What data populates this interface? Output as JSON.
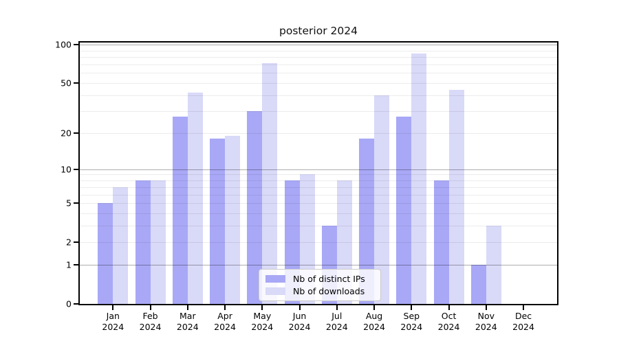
{
  "title": "posterior 2024",
  "colors": {
    "distinct_ips_bar": "#a8a8f6",
    "downloads_bar": "#d9d9f8",
    "grid_minor": "rgba(0,0,0,0.075)",
    "grid_major": "rgba(0,0,0,0.32)",
    "axis": "#000000",
    "legend_border": "#cccccc"
  },
  "chart_data": {
    "type": "bar",
    "title": "posterior 2024",
    "categories": [
      "Jan 2024",
      "Feb 2024",
      "Mar 2024",
      "Apr 2024",
      "May 2024",
      "Jun 2024",
      "Jul 2024",
      "Aug 2024",
      "Sep 2024",
      "Oct 2024",
      "Nov 2024",
      "Dec 2024"
    ],
    "series": [
      {
        "name": "Nb of distinct IPs",
        "color": "#a8a8f6",
        "values": [
          5,
          8,
          27,
          18,
          30,
          8,
          3,
          18,
          27,
          8,
          1,
          0
        ]
      },
      {
        "name": "Nb of downloads",
        "color": "#d9d9f8",
        "values": [
          7,
          8,
          42,
          19,
          72,
          9,
          8,
          40,
          85,
          44,
          3,
          0
        ]
      }
    ],
    "xlabel": "",
    "ylabel": "",
    "y_axis": {
      "scale": "log1p",
      "range": [
        0,
        100
      ],
      "tick_values": [
        0,
        1,
        2,
        5,
        10,
        20,
        50,
        100
      ],
      "tick_labels": [
        "0",
        "1",
        "2",
        "5",
        "10",
        "20",
        "50",
        "100"
      ],
      "major_gridlines": [
        1,
        10,
        100
      ],
      "minor_gridlines": [
        2,
        3,
        4,
        5,
        6,
        7,
        8,
        9,
        20,
        30,
        40,
        50,
        60,
        70,
        80,
        90
      ]
    },
    "grid": true,
    "legend_position": "lower center"
  }
}
